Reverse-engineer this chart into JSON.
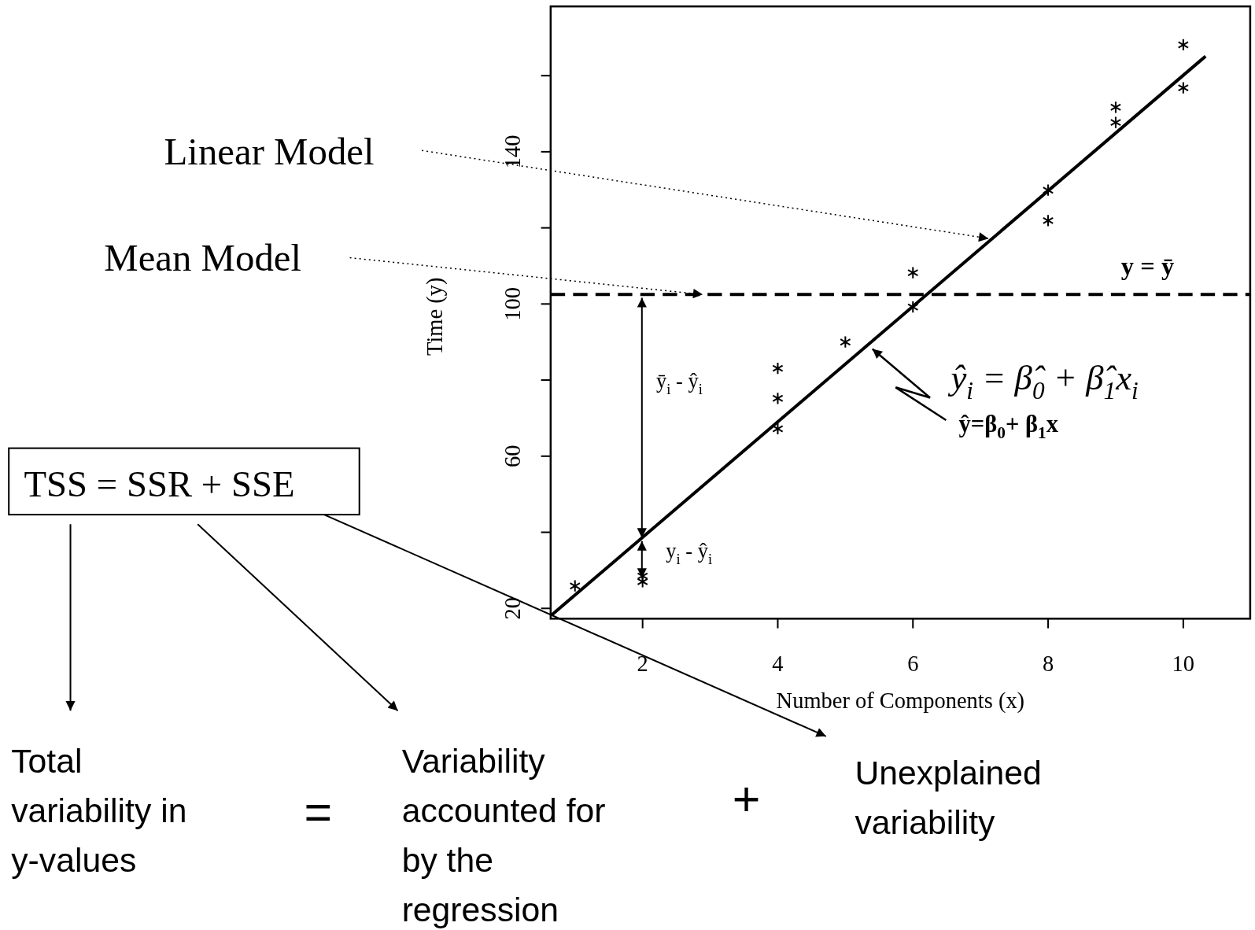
{
  "chart_data": {
    "type": "scatter",
    "xlabel": "Number of Components (x)",
    "ylabel": "Time (y)",
    "xlim": [
      0.64,
      10.99
    ],
    "ylim": [
      17.3,
      178.2
    ],
    "xticks": [
      2,
      4,
      6,
      8,
      10
    ],
    "yticks": [
      20,
      {
        "value": 40,
        "label": null
      },
      60,
      {
        "value": 80,
        "label": null
      },
      100,
      {
        "value": 120,
        "label": null
      },
      140,
      {
        "value": 160,
        "label": null
      }
    ],
    "series": [
      {
        "marker": "cross",
        "color": "#000000",
        "x": [
          1,
          2,
          2,
          4,
          4,
          4,
          5,
          6,
          6,
          8,
          8,
          9,
          9,
          10,
          10
        ],
        "values": [
          25.9,
          28.5,
          27.0,
          83.1,
          75.2,
          67.2,
          90.0,
          108.2,
          99.2,
          129.9,
          121.9,
          151.7,
          147.7,
          168.1,
          156.8
        ]
      },
      {
        "type": "line",
        "color": "#000000",
        "line_style": "solid",
        "x": [
          0.65,
          10.33
        ],
        "values": [
          18.2,
          165.1
        ]
      }
    ],
    "ref_lines": [
      {
        "axis": "y",
        "value": 102.5,
        "label": "y = ȳ",
        "line_style": "dashed",
        "color": "#000000"
      }
    ],
    "annotations": [
      "Linear Model",
      "Mean Model",
      "ȳ$_{i}$ - ŷ$_{i}$",
      "y$_{i}$ - ŷ$_{i}$",
      "ŷ$_{i}$ = β̂$_{0}$ + β̂$_{1}$x$_{i}$",
      "ŷ=β$_{0}$+ β$_{1}$x",
      "TSS =  SSR + SSE",
      "Total variability in y-values",
      "=",
      "Variability accounted for by the regression",
      "+",
      "Unexplained variability"
    ]
  }
}
